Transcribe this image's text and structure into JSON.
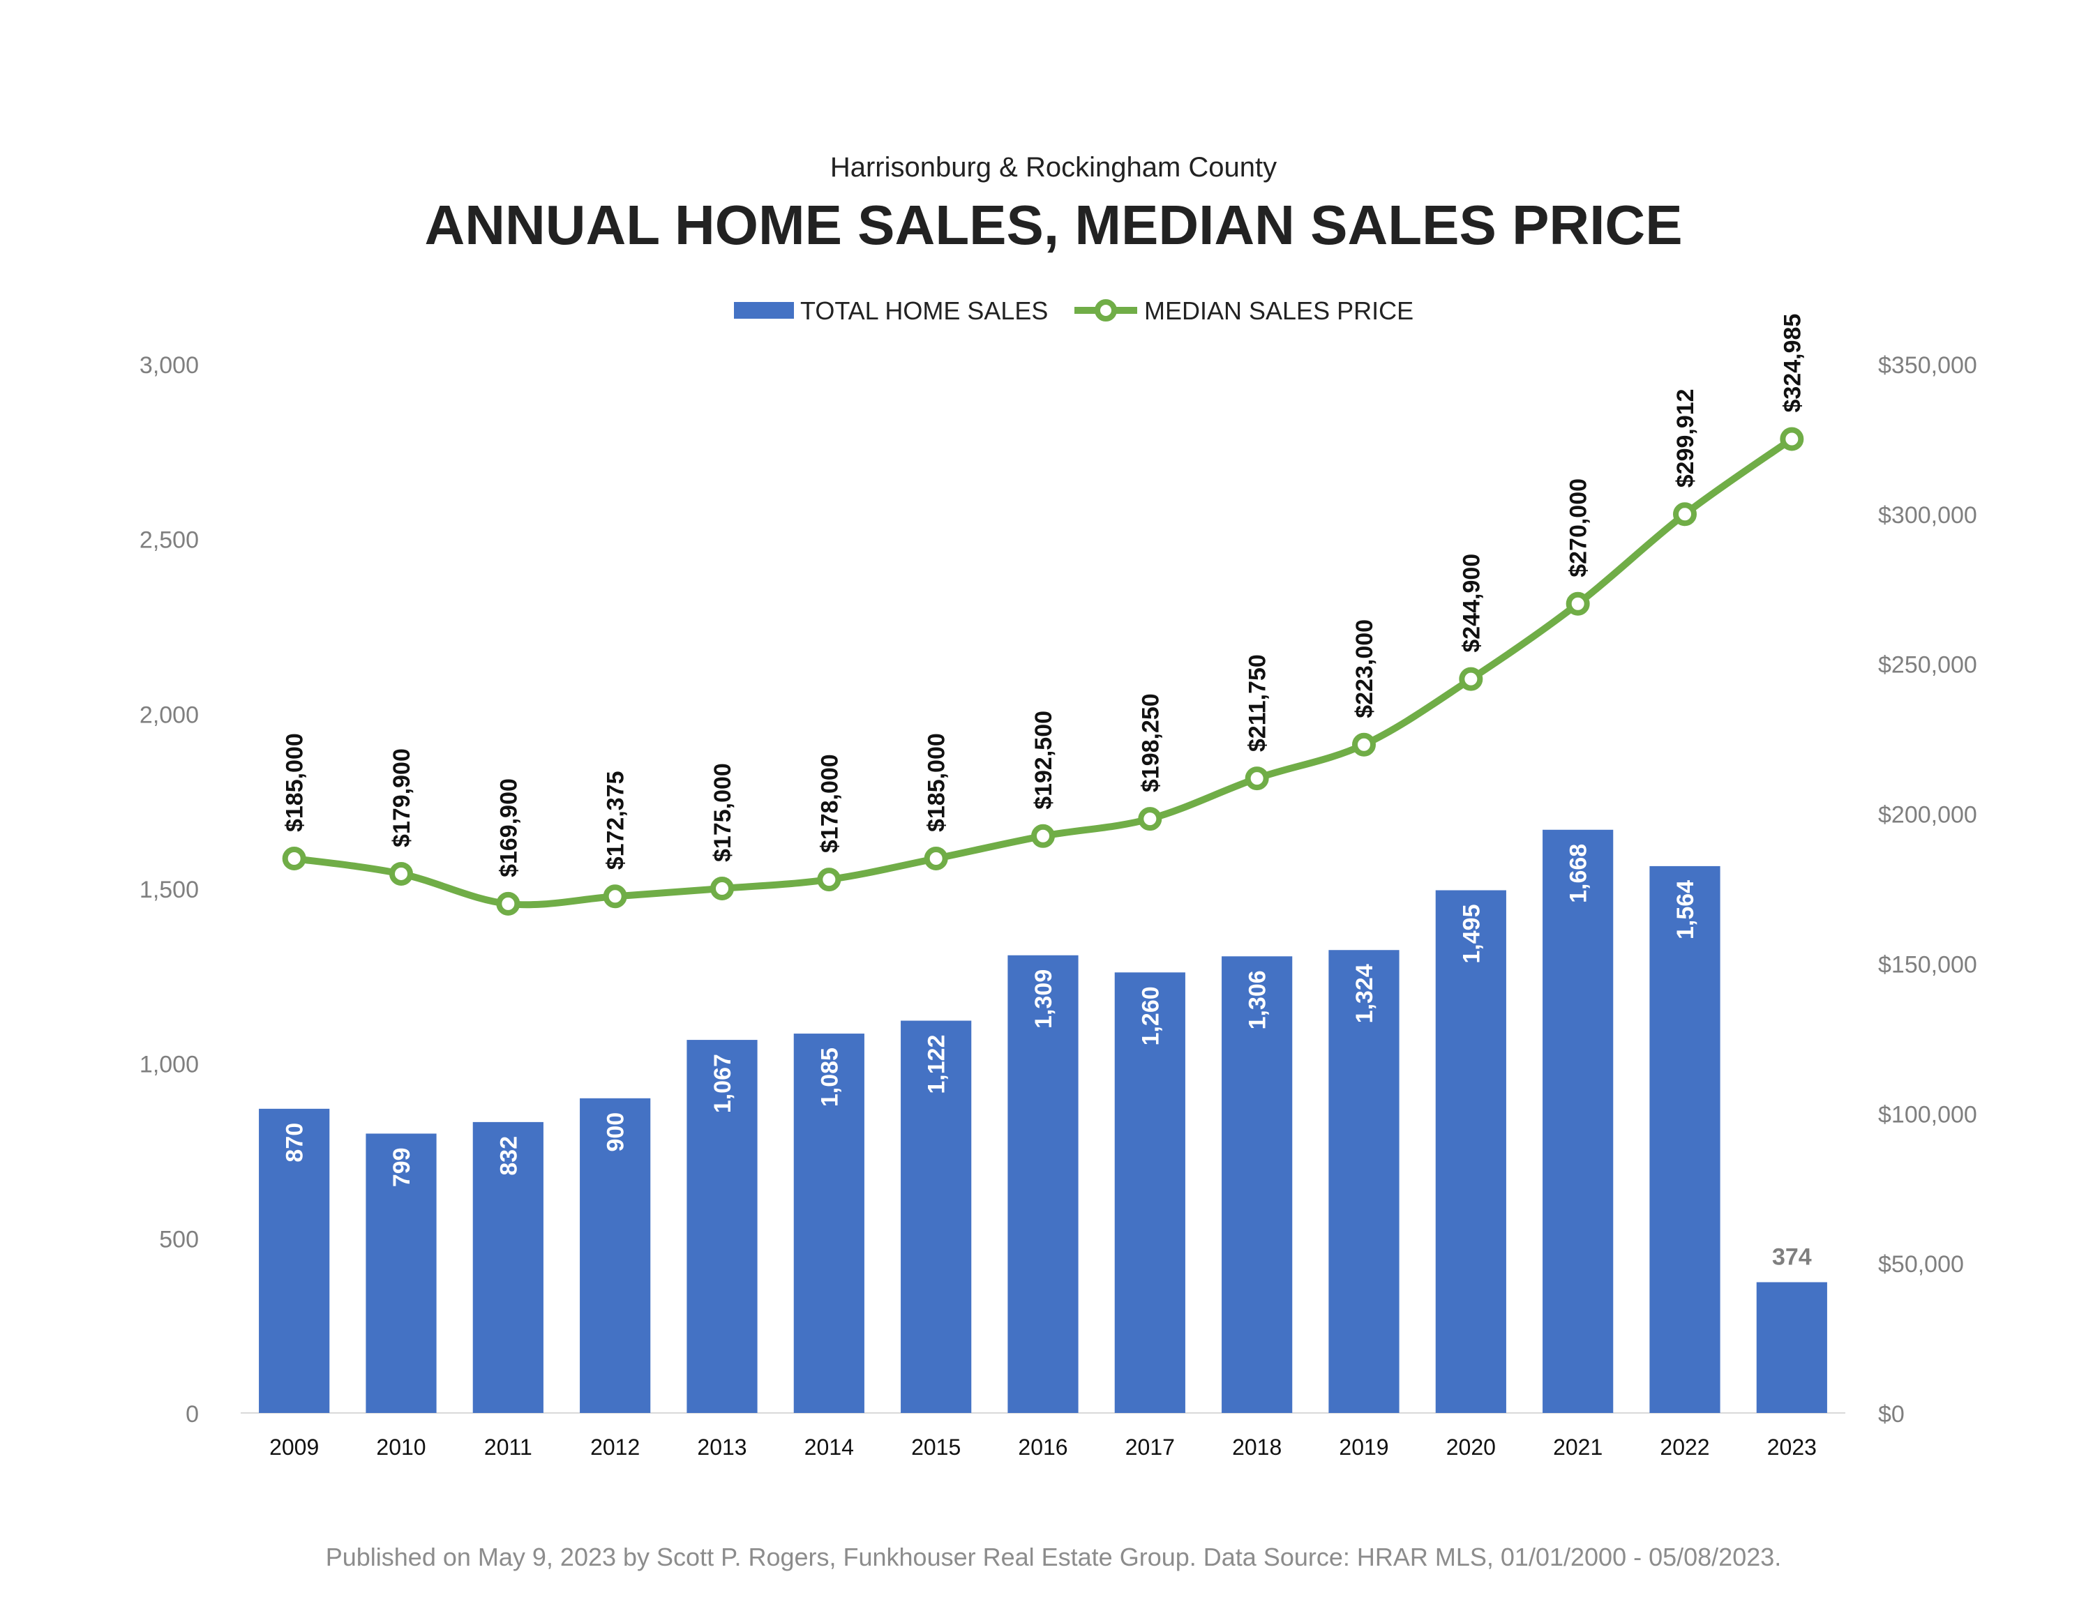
{
  "colors": {
    "bar": "#4472C4",
    "line": "#70AD47",
    "axis_label": "#7F7F7F",
    "title": "#222222",
    "footer": "#8C8C8C",
    "bar_label": "#FFFFFF",
    "line_label": "#111111"
  },
  "chart_data": {
    "type": "bar",
    "subtitle": "Harrisonburg & Rockingham County",
    "title": "ANNUAL HOME SALES, MEDIAN SALES PRICE",
    "legend_placement": "top-center",
    "grid": false,
    "categories": [
      "2009",
      "2010",
      "2011",
      "2012",
      "2013",
      "2014",
      "2015",
      "2016",
      "2017",
      "2018",
      "2019",
      "2020",
      "2021",
      "2022",
      "2023"
    ],
    "series": [
      {
        "name": "TOTAL HOME SALES",
        "type": "bar",
        "axis": "left",
        "values": [
          870,
          799,
          832,
          900,
          1067,
          1085,
          1122,
          1309,
          1260,
          1306,
          1324,
          1495,
          1668,
          1564,
          374
        ],
        "labels": [
          "870",
          "799",
          "832",
          "900",
          "1,067",
          "1,085",
          "1,122",
          "1,309",
          "1,260",
          "1,306",
          "1,324",
          "1,495",
          "1,668",
          "1,564",
          "374"
        ]
      },
      {
        "name": "MEDIAN SALES PRICE",
        "type": "line",
        "axis": "right",
        "values": [
          185000,
          179900,
          169900,
          172375,
          175000,
          178000,
          185000,
          192500,
          198250,
          211750,
          223000,
          244900,
          270000,
          299912,
          324985
        ],
        "labels": [
          "$185,000",
          "$179,900",
          "$169,900",
          "$172,375",
          "$175,000",
          "$178,000",
          "$185,000",
          "$192,500",
          "$198,250",
          "$211,750",
          "$223,000",
          "$244,900",
          "$270,000",
          "$299,912",
          "$324,985"
        ]
      }
    ],
    "y_left": {
      "min": 0,
      "max": 3000,
      "ticks": [
        0,
        500,
        1000,
        1500,
        2000,
        2500,
        3000
      ],
      "tick_labels": [
        "0",
        "500",
        "1,000",
        "1,500",
        "2,000",
        "2,500",
        "3,000"
      ]
    },
    "y_right": {
      "min": 0,
      "max": 350000,
      "ticks": [
        0,
        50000,
        100000,
        150000,
        200000,
        250000,
        300000,
        350000
      ],
      "tick_labels": [
        "$0",
        "$50,000",
        "$100,000",
        "$150,000",
        "$200,000",
        "$250,000",
        "$300,000",
        "$350,000"
      ]
    }
  },
  "footer": "Published on May 9, 2023 by Scott P. Rogers, Funkhouser Real Estate Group. Data Source: HRAR MLS, 01/01/2000 - 05/08/2023."
}
